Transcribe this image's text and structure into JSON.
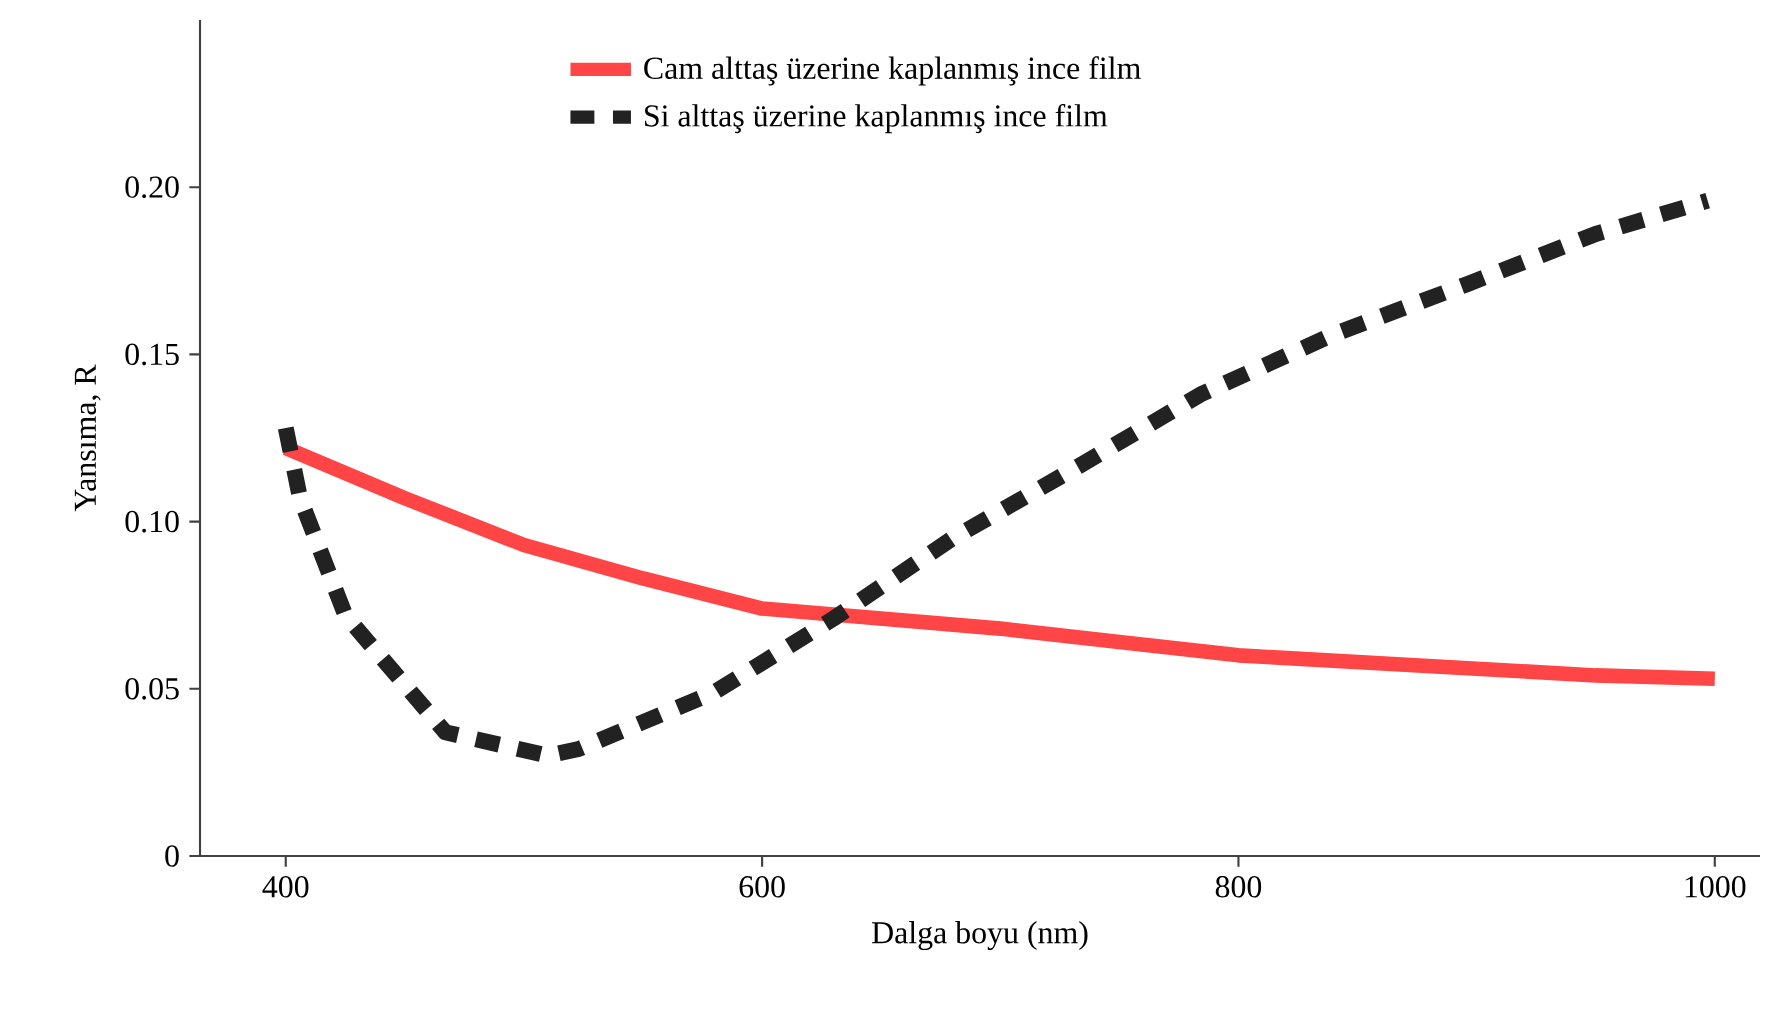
{
  "chart_data": {
    "type": "line",
    "xlabel": "Dalga boyu (nm)",
    "ylabel": "Yansıma, R",
    "xlim": [
      364,
      1019
    ],
    "ylim": [
      0,
      0.25
    ],
    "xticks": [
      400,
      600,
      800,
      1000
    ],
    "yticks": [
      0,
      0.05,
      {
        "value": 0.1,
        "label": "0.10"
      },
      0.15,
      {
        "value": 0.2,
        "label": "0.20"
      }
    ],
    "grid": false,
    "legend": "top",
    "marker": "none",
    "series": [
      {
        "name": "Cam alttaş üzerine kaplanmış ince film",
        "color": "#ff4545",
        "line_style": "solid",
        "x": [
          400,
          450,
          500,
          550,
          600,
          650,
          700,
          750,
          800,
          850,
          900,
          950,
          1000
        ],
        "values": [
          0.122,
          0.107,
          0.093,
          0.083,
          0.074,
          0.071,
          0.068,
          0.064,
          0.06,
          0.058,
          0.056,
          0.054,
          0.053
        ]
      },
      {
        "name": "Si alttaş üzerine kaplanmış ince film",
        "color": "#222222",
        "line_style": "dashed",
        "x": [
          400,
          406,
          425,
          467,
          510,
          523,
          580,
          630,
          680,
          734,
          784,
          840,
          896,
          950,
          997
        ],
        "values": [
          0.128,
          0.107,
          0.072,
          0.037,
          0.03,
          0.032,
          0.049,
          0.071,
          0.095,
          0.117,
          0.138,
          0.156,
          0.171,
          0.186,
          0.196
        ]
      }
    ]
  }
}
